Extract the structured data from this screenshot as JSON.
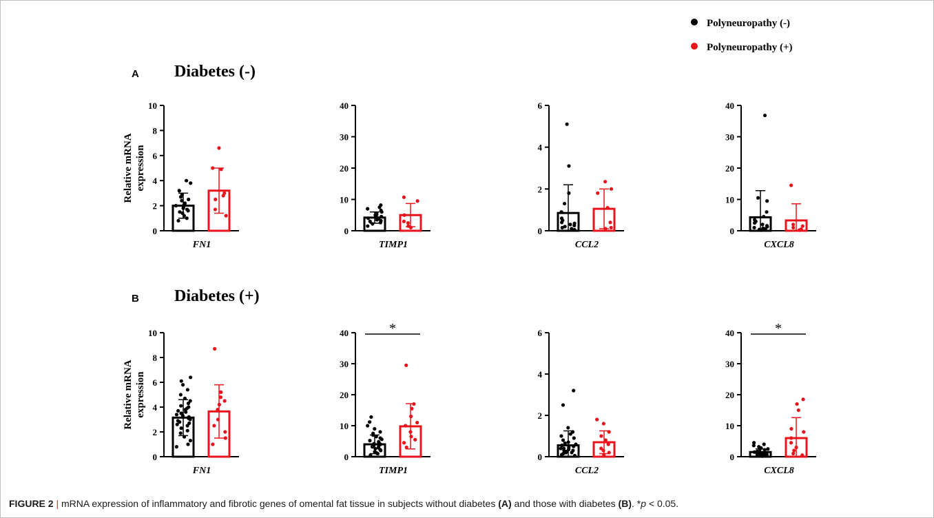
{
  "caption": {
    "label": "FIGURE 2",
    "sep": "|",
    "part1": "mRNA expression of inflammatory and fibrotic genes of omental fat tissue in subjects without diabetes",
    "a": "(A)",
    "part2": "and those with diabetes",
    "b": "(B)",
    "part3": ". *",
    "p": "p",
    "part4": "< 0.05."
  },
  "legend": [
    {
      "label": "Polyneuropathy (-)",
      "color": "#000000"
    },
    {
      "label": "Polyneuropathy (+)",
      "color": "#e8141b"
    }
  ],
  "colors": {
    "black": "#000000",
    "red": "#e8141b"
  },
  "chart_data": [
    {
      "panel": "A",
      "title": "Diabetes (-)",
      "type": "bar",
      "gene": "FN1",
      "ylabel": "Relative mRNA expression",
      "ylim": [
        0,
        10
      ],
      "yticks": [
        0,
        2,
        4,
        6,
        8,
        10
      ],
      "significance": "",
      "series": [
        {
          "name": "Polyneuropathy (-)",
          "mean": 2.0,
          "sd": 1.0,
          "points": [
            0.8,
            1.0,
            1.2,
            1.4,
            1.5,
            1.6,
            1.7,
            1.8,
            1.9,
            2.0,
            2.0,
            2.1,
            2.2,
            2.4,
            2.5,
            2.7,
            2.9,
            3.2,
            3.8,
            4.0
          ]
        },
        {
          "name": "Polyneuropathy (+)",
          "mean": 3.2,
          "sd": 1.8,
          "points": [
            1.2,
            1.7,
            2.5,
            2.8,
            3.0,
            4.9,
            5.0,
            6.6
          ]
        }
      ]
    },
    {
      "panel": "A",
      "type": "bar",
      "gene": "TIMP1",
      "ylim": [
        0,
        40
      ],
      "yticks": [
        0,
        10,
        20,
        30,
        40
      ],
      "significance": "",
      "series": [
        {
          "name": "Polyneuropathy (-)",
          "mean": 4.2,
          "sd": 1.8,
          "points": [
            1.5,
            2.2,
            2.6,
            3.0,
            3.2,
            3.5,
            3.8,
            4.0,
            4.2,
            4.5,
            4.8,
            5.0,
            5.3,
            5.6,
            6.0,
            6.5,
            7.0,
            7.5,
            8.2
          ]
        },
        {
          "name": "Polyneuropathy (+)",
          "mean": 5.0,
          "sd": 3.7,
          "points": [
            1.0,
            1.5,
            2.5,
            3.0,
            5.0,
            9.5,
            10.7
          ]
        }
      ]
    },
    {
      "panel": "A",
      "type": "bar",
      "gene": "CCL2",
      "ylim": [
        0,
        6
      ],
      "yticks": [
        0,
        2,
        4,
        6
      ],
      "significance": "",
      "series": [
        {
          "name": "Polyneuropathy (-)",
          "mean": 0.85,
          "sd": 1.35,
          "points": [
            0.05,
            0.1,
            0.15,
            0.2,
            0.25,
            0.3,
            0.35,
            0.4,
            0.5,
            0.6,
            0.9,
            1.3,
            1.8,
            3.1,
            5.1
          ]
        },
        {
          "name": "Polyneuropathy (+)",
          "mean": 1.05,
          "sd": 0.95,
          "points": [
            0.1,
            0.15,
            0.4,
            1.1,
            1.8,
            2.0,
            2.35
          ]
        }
      ]
    },
    {
      "panel": "A",
      "type": "bar",
      "gene": "CXCL8",
      "ylim": [
        0,
        40
      ],
      "yticks": [
        0,
        10,
        20,
        30,
        40
      ],
      "significance": "",
      "series": [
        {
          "name": "Polyneuropathy (-)",
          "mean": 4.3,
          "sd": 8.5,
          "points": [
            0.2,
            0.4,
            0.6,
            0.8,
            1.0,
            1.3,
            1.6,
            2.0,
            2.5,
            3.0,
            3.5,
            4.5,
            6.0,
            9.5,
            10.5,
            36.8
          ]
        },
        {
          "name": "Polyneuropathy (+)",
          "mean": 3.3,
          "sd": 5.3,
          "points": [
            0.2,
            0.5,
            1.0,
            1.5,
            2.0,
            14.5
          ]
        }
      ]
    },
    {
      "panel": "B",
      "title": "Diabetes (+)",
      "type": "bar",
      "gene": "FN1",
      "ylabel": "Relative mRNA expression",
      "ylim": [
        0,
        10
      ],
      "yticks": [
        0,
        2,
        4,
        6,
        8,
        10
      ],
      "significance": "",
      "series": [
        {
          "name": "Polyneuropathy (-)",
          "mean": 3.15,
          "sd": 1.45,
          "points": [
            0.8,
            1.0,
            1.3,
            1.6,
            1.9,
            2.1,
            2.3,
            2.5,
            2.6,
            2.7,
            2.8,
            2.9,
            3.0,
            3.1,
            3.2,
            3.3,
            3.4,
            3.5,
            3.6,
            3.7,
            3.8,
            3.9,
            4.0,
            4.1,
            4.3,
            4.5,
            4.7,
            5.0,
            5.4,
            5.8,
            6.1,
            6.4
          ]
        },
        {
          "name": "Polyneuropathy (+)",
          "mean": 3.65,
          "sd": 2.15,
          "points": [
            1.0,
            1.5,
            2.0,
            2.5,
            3.0,
            3.8,
            4.2,
            4.5,
            4.8,
            5.2,
            8.7
          ]
        }
      ]
    },
    {
      "panel": "B",
      "type": "bar",
      "gene": "TIMP1",
      "ylim": [
        0,
        40
      ],
      "yticks": [
        0,
        10,
        20,
        30,
        40
      ],
      "significance": "*",
      "series": [
        {
          "name": "Polyneuropathy (-)",
          "mean": 4.0,
          "sd": 3.0,
          "points": [
            0.5,
            1.0,
            1.3,
            1.6,
            2.0,
            2.3,
            2.6,
            2.9,
            3.2,
            3.5,
            3.8,
            4.0,
            4.2,
            4.5,
            4.8,
            5.2,
            5.6,
            6.0,
            6.5,
            7.0,
            7.5,
            8.0,
            9.0,
            10.0,
            11.2,
            12.8
          ]
        },
        {
          "name": "Polyneuropathy (+)",
          "mean": 9.8,
          "sd": 7.3,
          "points": [
            3.0,
            4.5,
            5.5,
            6.5,
            8.0,
            10.0,
            11.0,
            13.0,
            15.5,
            17.0,
            29.5
          ]
        }
      ]
    },
    {
      "panel": "B",
      "type": "bar",
      "gene": "CCL2",
      "ylim": [
        0,
        6
      ],
      "yticks": [
        0,
        2,
        4,
        6
      ],
      "significance": "",
      "series": [
        {
          "name": "Polyneuropathy (-)",
          "mean": 0.55,
          "sd": 0.7,
          "points": [
            0.05,
            0.1,
            0.15,
            0.2,
            0.2,
            0.25,
            0.3,
            0.3,
            0.35,
            0.4,
            0.4,
            0.45,
            0.5,
            0.55,
            0.6,
            0.65,
            0.7,
            0.8,
            0.9,
            1.0,
            1.1,
            1.2,
            1.4,
            2.5,
            3.2
          ]
        },
        {
          "name": "Polyneuropathy (+)",
          "mean": 0.7,
          "sd": 0.55,
          "points": [
            0.1,
            0.2,
            0.3,
            0.4,
            0.6,
            0.8,
            1.0,
            1.2,
            1.6,
            1.8
          ]
        }
      ]
    },
    {
      "panel": "B",
      "type": "bar",
      "gene": "CXCL8",
      "ylim": [
        0,
        40
      ],
      "yticks": [
        0,
        10,
        20,
        30,
        40
      ],
      "significance": "*",
      "series": [
        {
          "name": "Polyneuropathy (-)",
          "mean": 1.5,
          "sd": 1.0,
          "points": [
            0.2,
            0.3,
            0.4,
            0.5,
            0.6,
            0.7,
            0.8,
            0.9,
            1.0,
            1.1,
            1.2,
            1.3,
            1.5,
            1.7,
            1.9,
            2.2,
            2.5,
            2.8,
            3.2,
            3.6,
            4.0,
            4.5
          ]
        },
        {
          "name": "Polyneuropathy (+)",
          "mean": 6.0,
          "sd": 6.6,
          "points": [
            0.5,
            1.0,
            2.0,
            3.0,
            4.5,
            6.0,
            8.0,
            9.0,
            15.0,
            17.0,
            18.5
          ]
        }
      ]
    }
  ]
}
